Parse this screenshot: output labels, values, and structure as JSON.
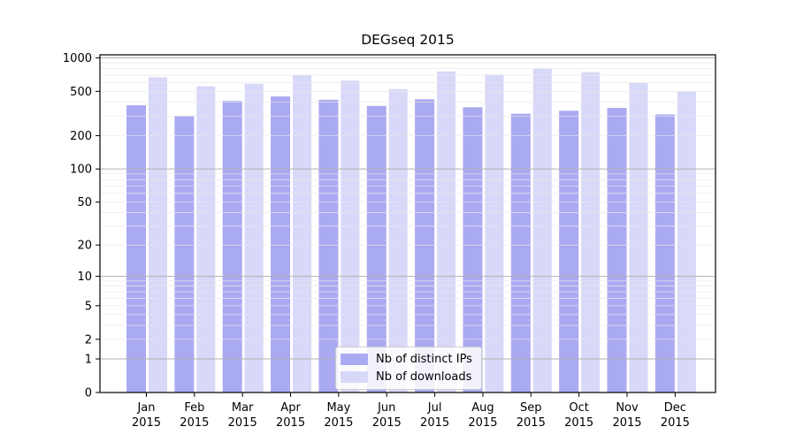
{
  "chart_data": {
    "type": "bar",
    "title": "DEGseq 2015",
    "categories": [
      "Jan",
      "Feb",
      "Mar",
      "Apr",
      "May",
      "Jun",
      "Jul",
      "Aug",
      "Sep",
      "Oct",
      "Nov",
      "Dec"
    ],
    "category_year": "2015",
    "series": [
      {
        "name": "Nb of distinct IPs",
        "color": "#aaaaf2",
        "values": [
          375,
          300,
          410,
          450,
          420,
          370,
          425,
          360,
          315,
          335,
          355,
          310
        ]
      },
      {
        "name": "Nb of downloads",
        "color": "#d8d8f8",
        "values": [
          670,
          555,
          585,
          700,
          625,
          525,
          755,
          710,
          805,
          745,
          595,
          500
        ]
      }
    ],
    "xlabel": "",
    "ylabel": "",
    "y_scale": "log1p",
    "y_ticks": [
      0,
      1,
      2,
      5,
      10,
      20,
      50,
      100,
      200,
      500,
      1000
    ],
    "ylim": [
      0,
      1065
    ],
    "grid": {
      "major_color": "#b0b0b0",
      "minor_color": "#e9e9e9",
      "major_values": [
        1,
        10,
        100,
        1000
      ]
    },
    "legend_position": "lower-center",
    "axis_color": "#000000",
    "background_color": "#ffffff"
  }
}
